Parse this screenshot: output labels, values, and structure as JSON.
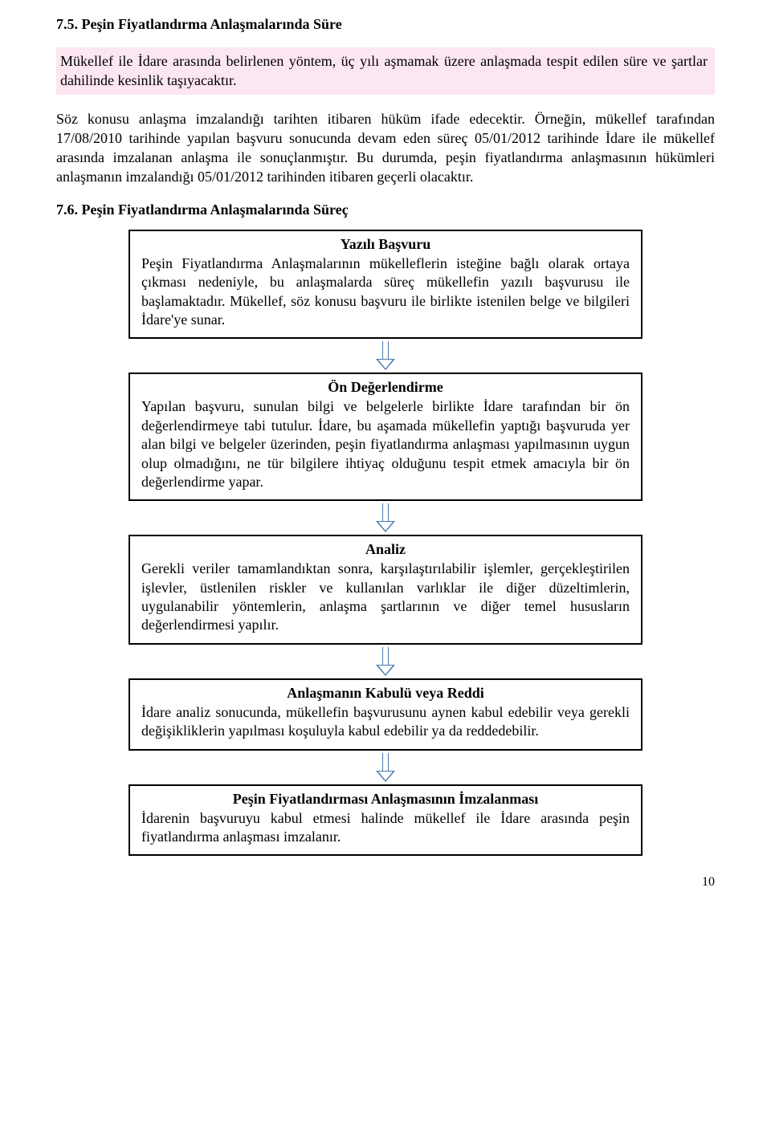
{
  "section75": {
    "heading": "7.5. Peşin Fiyatlandırma Anlaşmalarında Süre",
    "highlight": "Mükellef ile İdare arasında belirlenen yöntem, üç yılı aşmamak üzere anlaşmada tespit edilen süre ve şartlar dahilinde kesinlik taşıyacaktır.",
    "body": "Söz konusu anlaşma imzalandığı tarihten itibaren hüküm ifade edecektir. Örneğin, mükellef tarafından 17/08/2010 tarihinde yapılan başvuru sonucunda devam eden süreç 05/01/2012 tarihinde İdare ile mükellef arasında imzalanan anlaşma ile sonuçlanmıştır. Bu durumda, peşin fiyatlandırma anlaşmasının hükümleri anlaşmanın imzalandığı 05/01/2012 tarihinden itibaren geçerli olacaktır."
  },
  "section76": {
    "heading": "7.6. Peşin Fiyatlandırma Anlaşmalarında Süreç",
    "steps": [
      {
        "title": "Yazılı Başvuru",
        "text": "Peşin Fiyatlandırma Anlaşmalarının mükelleflerin isteğine bağlı olarak ortaya çıkması nedeniyle, bu anlaşmalarda süreç mükellefin yazılı başvurusu ile başlamaktadır. Mükellef, söz konusu başvuru ile birlikte istenilen belge ve bilgileri İdare'ye sunar."
      },
      {
        "title": "Ön Değerlendirme",
        "text": "Yapılan başvuru, sunulan bilgi ve belgelerle birlikte İdare tarafından bir ön değerlendirmeye tabi tutulur. İdare, bu aşamada mükellefin yaptığı başvuruda yer alan bilgi ve belgeler üzerinden, peşin fiyatlandırma anlaşması yapılmasının uygun olup olmadığını, ne tür bilgilere ihtiyaç olduğunu tespit etmek amacıyla bir ön değerlendirme yapar."
      },
      {
        "title": "Analiz",
        "text": "Gerekli veriler tamamlandıktan sonra, karşılaştırılabilir işlemler, gerçekleştirilen işlevler, üstlenilen riskler ve kullanılan varlıklar ile diğer düzeltimlerin, uygulanabilir yöntemlerin, anlaşma şartlarının ve diğer temel hususların değerlendirmesi yapılır."
      },
      {
        "title": "Anlaşmanın Kabulü veya Reddi",
        "text": "İdare analiz sonucunda, mükellefin başvurusunu aynen kabul edebilir veya gerekli değişikliklerin yapılması koşuluyla kabul edebilir ya da reddedebilir."
      },
      {
        "title": "Peşin Fiyatlandırması Anlaşmasının İmzalanması",
        "text": "İdarenin başvuruyu kabul etmesi halinde mükellef ile İdare arasında peşin fiyatlandırma anlaşması imzalanır."
      }
    ]
  },
  "pageNumber": "10"
}
